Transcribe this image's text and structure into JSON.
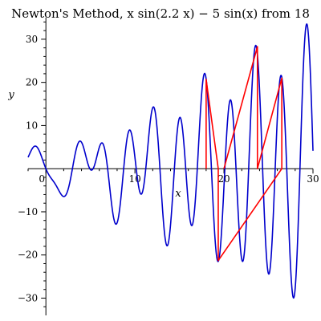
{
  "chart_data": {
    "type": "line",
    "title": "Newton's Method, x sin(2.2 x) − 5 sin(x) from 18",
    "xlabel": "x",
    "ylabel": "y",
    "xlim": [
      -2,
      30
    ],
    "ylim": [
      -34,
      35
    ],
    "x_ticks": [
      0,
      10,
      20,
      30
    ],
    "y_ticks": [
      -30,
      -20,
      -10,
      10,
      20,
      30
    ],
    "x_tick_labels": [
      "0",
      "10",
      "20",
      "30"
    ],
    "y_tick_labels": [
      "−30",
      "−20",
      "−10",
      "10",
      "20",
      "30"
    ],
    "grid": false,
    "series": [
      {
        "role": "function curve",
        "expression": "x*sin(2.2*x) - 5*sin(x)",
        "x_range": [
          -2,
          30
        ],
        "color": "#0000cc"
      },
      {
        "role": "newton iteration path",
        "color": "#ff0000",
        "points": [
          {
            "x": 18.0,
            "y": 0
          },
          {
            "x": 18.0,
            "y": 20.7
          },
          {
            "x": 19.36,
            "y": 0
          },
          {
            "x": 19.36,
            "y": -21.3
          },
          {
            "x": 26.5,
            "y": 0
          },
          {
            "x": 26.5,
            "y": 21.0
          },
          {
            "x": 23.76,
            "y": 0
          },
          {
            "x": 23.76,
            "y": 28.3
          },
          {
            "x": 20.0,
            "y": 0
          }
        ]
      }
    ]
  }
}
